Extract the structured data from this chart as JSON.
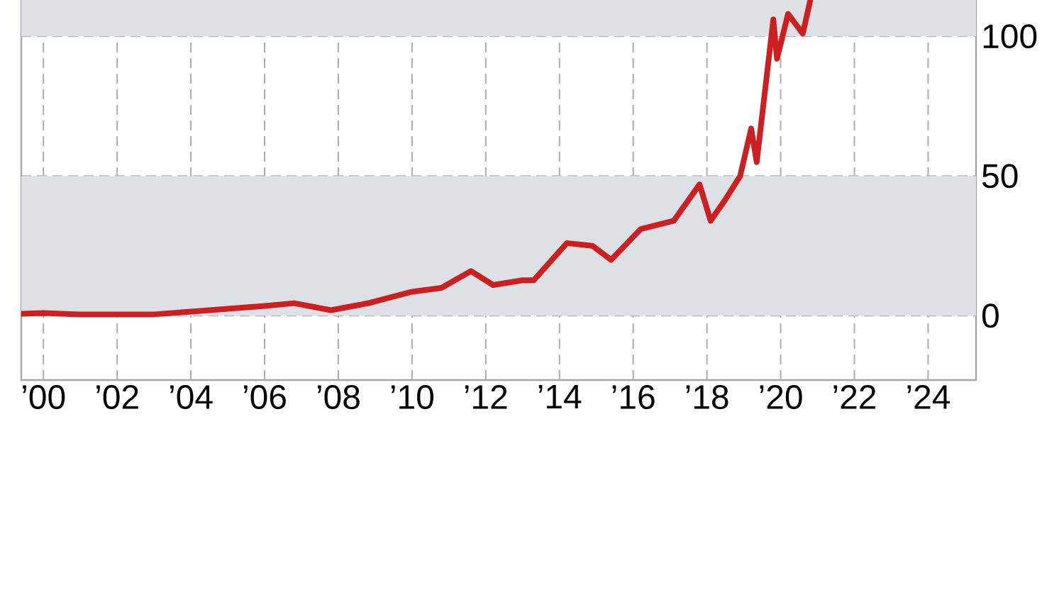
{
  "chart_data": {
    "type": "line",
    "x": [
      1999.42,
      2000,
      2001,
      2002,
      2003,
      2004,
      2005,
      2006,
      2006.8,
      2007.8,
      2008.85,
      2010,
      2010.8,
      2011.6,
      2012.2,
      2013,
      2013.3,
      2014.2,
      2014.9,
      2015.4,
      2016.2,
      2017.1,
      2017.8,
      2018.1,
      2018.5,
      2018.9,
      2019.2,
      2019.35,
      2019.8,
      2019.9,
      2020.2,
      2020.6,
      2020.8
    ],
    "series": [
      {
        "color": "#cc1f1f",
        "values": [
          0.7,
          1,
          0.5,
          0.5,
          0.5,
          1.5,
          2.5,
          3.5,
          4.5,
          2,
          4.6,
          8.6,
          10,
          16,
          11,
          12.7,
          12.7,
          26,
          25,
          20,
          31,
          34,
          47,
          34,
          41.6,
          50,
          67,
          55,
          106,
          92,
          108,
          101,
          112.7
        ]
      }
    ],
    "xlim": [
      1999.4,
      2025.3
    ],
    "xticks": [
      {
        "value": 2000,
        "label": "’00"
      },
      {
        "value": 2002,
        "label": "’02"
      },
      {
        "value": 2004,
        "label": "’04"
      },
      {
        "value": 2006,
        "label": "’06"
      },
      {
        "value": 2008,
        "label": "’08"
      },
      {
        "value": 2010,
        "label": "’10"
      },
      {
        "value": 2012,
        "label": "’12"
      },
      {
        "value": 2014,
        "label": "’14"
      },
      {
        "value": 2016,
        "label": "’16"
      },
      {
        "value": 2018,
        "label": "’18"
      },
      {
        "value": 2020,
        "label": "’20"
      },
      {
        "value": 2022,
        "label": "’22"
      },
      {
        "value": 2024,
        "label": "’24"
      }
    ],
    "ylim": [
      -23,
      113
    ],
    "yticks": [
      0,
      50,
      100
    ],
    "grid": true,
    "bands": [
      {
        "axis": "y",
        "from": 0,
        "to": 50,
        "color": "#dde1e5"
      },
      {
        "axis": "y",
        "from": 100,
        "to": 113,
        "color": "#dde1e5"
      }
    ]
  }
}
